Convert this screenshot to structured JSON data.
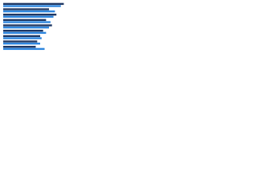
{
  "chart_data": {
    "type": "grouped-horizontal-bar",
    "categories": [
      null,
      null,
      null,
      null,
      null,
      null,
      null,
      null,
      null
    ],
    "series": [
      {
        "color": "#1f3864",
        "values": [
          82,
          62,
          72,
          58,
          66,
          54,
          50,
          46,
          44
        ]
      },
      {
        "color": "#2e86de",
        "values": [
          78,
          70,
          68,
          64,
          62,
          58,
          52,
          50,
          56
        ]
      }
    ],
    "xlim": [
      0,
      100
    ]
  }
}
